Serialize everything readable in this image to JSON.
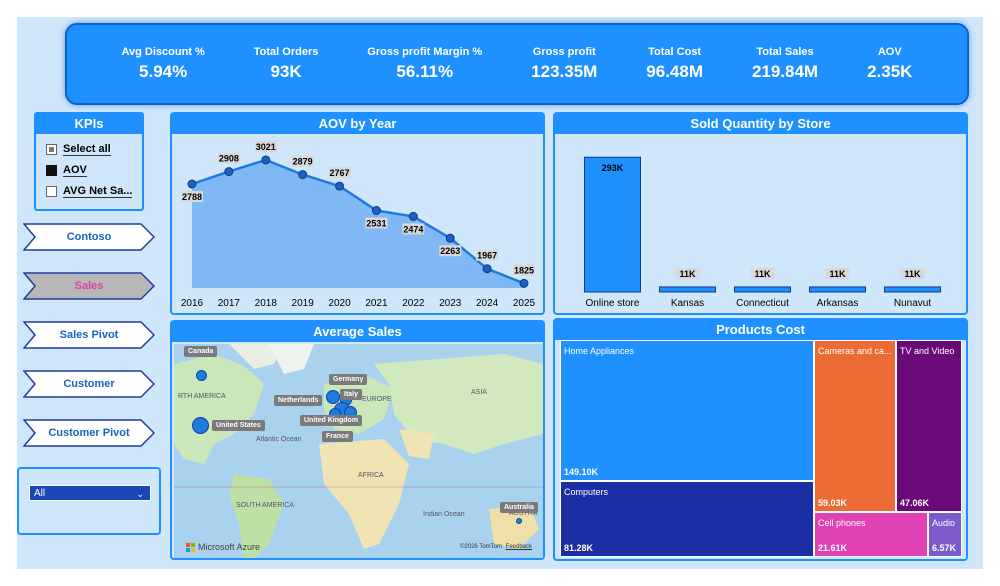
{
  "kpis": [
    {
      "label": "Avg Discount %",
      "value": "5.94%"
    },
    {
      "label": "Total Orders",
      "value": "93K"
    },
    {
      "label": "Gross profit Margin %",
      "value": "56.11%"
    },
    {
      "label": "Gross profit",
      "value": "123.35M"
    },
    {
      "label": "Total Cost",
      "value": "96.48M"
    },
    {
      "label": "Total Sales",
      "value": "219.84M"
    },
    {
      "label": "AOV",
      "value": "2.35K"
    }
  ],
  "kpi_slicer": {
    "title": "KPIs",
    "options": [
      {
        "label": "Select all",
        "state": "partial"
      },
      {
        "label": "AOV",
        "state": "checked"
      },
      {
        "label": "AVG Net Sa...",
        "state": "unchecked"
      }
    ]
  },
  "nav": [
    {
      "label": "Contoso",
      "active": false
    },
    {
      "label": "Sales",
      "active": true
    },
    {
      "label": "Sales Pivot",
      "active": false
    },
    {
      "label": "Customer",
      "active": false
    },
    {
      "label": "Customer Pivot",
      "active": false
    }
  ],
  "dropdown": {
    "selected": "All"
  },
  "panels": {
    "aov_title": "AOV by Year",
    "sold_title": "Sold Quantity by Store",
    "map_title": "Average Sales",
    "cost_title": "Products Cost"
  },
  "chart_data": [
    {
      "type": "area",
      "title": "AOV by Year",
      "x": [
        "2016",
        "2017",
        "2018",
        "2019",
        "2020",
        "2021",
        "2022",
        "2023",
        "2024",
        "2025"
      ],
      "values": [
        2788,
        2908,
        3021,
        2879,
        2767,
        2531,
        2474,
        2263,
        1967,
        1825
      ],
      "labels": [
        "2788",
        "2908",
        "3021",
        "2879",
        "2767",
        "2531",
        "2474",
        "2263",
        "1967",
        "1825"
      ],
      "ylim": [
        1780,
        3040
      ],
      "colors": {
        "line": "#1e7be0",
        "area": "#7fb8f5"
      }
    },
    {
      "type": "bar",
      "title": "Sold Quantity by Store",
      "categories": [
        "Online store",
        "Kansas",
        "Connecticut",
        "Arkansas",
        "Nunavut"
      ],
      "values": [
        293,
        11,
        11,
        11,
        11
      ],
      "labels": [
        "293K",
        "11K",
        "11K",
        "11K",
        "11K"
      ],
      "ylim": [
        0,
        300
      ],
      "colors": {
        "bar": "#1e90ff",
        "border": "#0d3c8a"
      }
    },
    {
      "type": "treemap",
      "title": "Products Cost",
      "items": [
        {
          "name": "Home Appliances",
          "value": "149.10K",
          "color": "#1e90ff"
        },
        {
          "name": "Computers",
          "value": "81.28K",
          "color": "#1c2ea3"
        },
        {
          "name": "Cameras and ca...",
          "value": "59.03K",
          "color": "#ec6b35"
        },
        {
          "name": "TV and Video",
          "value": "47.06K",
          "color": "#6a0a78"
        },
        {
          "name": "Cell phones",
          "value": "21.61K",
          "color": "#e041b4"
        },
        {
          "name": "Audio",
          "value": "6.57K",
          "color": "#7b5acb"
        }
      ]
    }
  ],
  "map": {
    "region_labels": [
      "RTH AMERICA",
      "Atlantic Ocean",
      "EUROPE",
      "ASIA",
      "AFRICA",
      "SOUTH AMERICA",
      "Indian Ocean",
      "AUSTRA"
    ],
    "tags": [
      "Canada",
      "United States",
      "Germany",
      "Netherlands",
      "Italy",
      "United Kingdom",
      "France",
      "Australia"
    ],
    "brand": "Microsoft Azure",
    "attribution": "©2026 TomTom",
    "feedback": "Feedback"
  }
}
